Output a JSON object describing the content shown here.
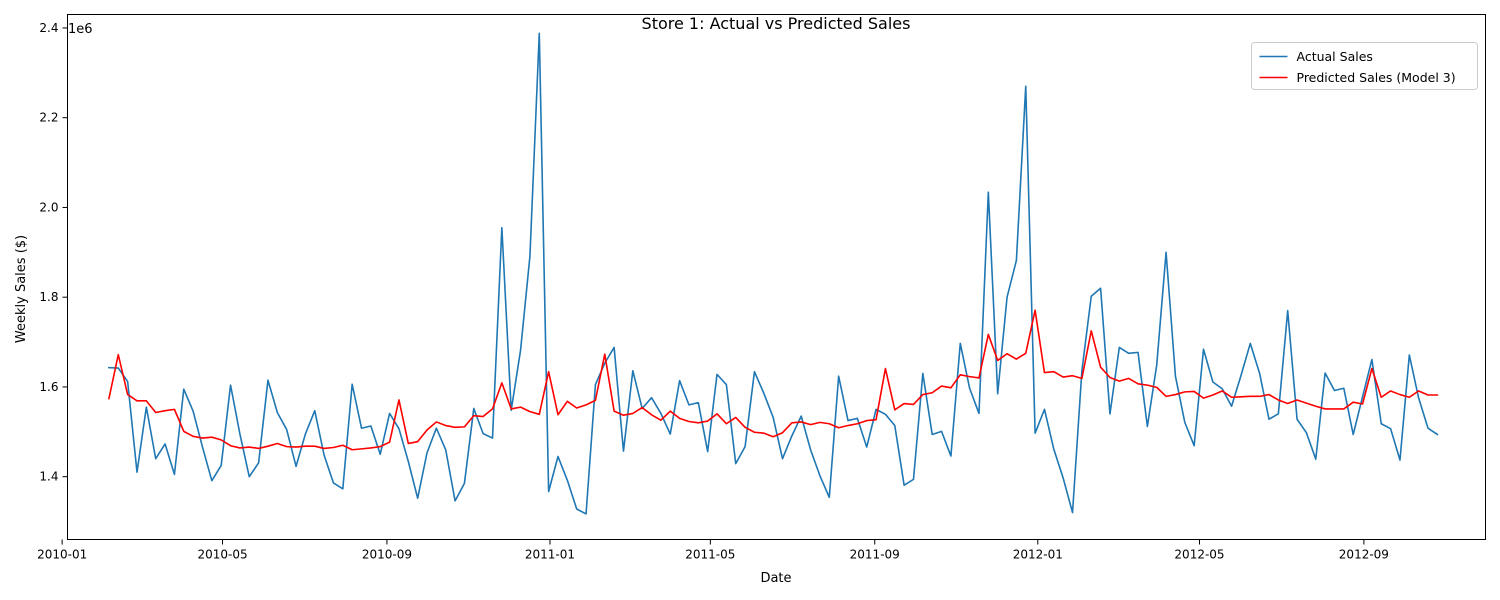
{
  "chart_data": {
    "type": "line",
    "title": "Store 1: Actual vs Predicted Sales",
    "xlabel": "Date",
    "ylabel": "Weekly Sales ($)",
    "y_offset_label": "1e6",
    "xlim": [
      "2010-01-05",
      "2012-12-01"
    ],
    "ylim": [
      1.26,
      2.43
    ],
    "x_ticks": [
      "2010-01",
      "2010-05",
      "2010-09",
      "2011-01",
      "2011-05",
      "2011-09",
      "2012-01",
      "2012-05",
      "2012-09"
    ],
    "y_ticks": [
      "1.4",
      "1.6",
      "1.8",
      "2.0",
      "2.2",
      "2.4"
    ],
    "legend_position": "top-right",
    "x_start": "2010-02-05",
    "x_step_days": 7,
    "series": [
      {
        "name": "Actual Sales",
        "color": "#1f77b4",
        "values": [
          1.643,
          1.642,
          1.612,
          1.41,
          1.555,
          1.44,
          1.473,
          1.405,
          1.595,
          1.546,
          1.466,
          1.391,
          1.425,
          1.604,
          1.495,
          1.4,
          1.431,
          1.615,
          1.543,
          1.505,
          1.423,
          1.495,
          1.547,
          1.448,
          1.386,
          1.373,
          1.606,
          1.508,
          1.513,
          1.45,
          1.541,
          1.507,
          1.434,
          1.352,
          1.453,
          1.508,
          1.46,
          1.346,
          1.385,
          1.552,
          1.496,
          1.486,
          1.955,
          1.548,
          1.682,
          1.891,
          2.388,
          1.367,
          1.445,
          1.392,
          1.328,
          1.317,
          1.605,
          1.653,
          1.688,
          1.457,
          1.636,
          1.552,
          1.576,
          1.541,
          1.495,
          1.614,
          1.56,
          1.565,
          1.456,
          1.628,
          1.605,
          1.429,
          1.467,
          1.634,
          1.586,
          1.532,
          1.44,
          1.491,
          1.535,
          1.46,
          1.402,
          1.354,
          1.624,
          1.525,
          1.53,
          1.466,
          1.55,
          1.539,
          1.514,
          1.381,
          1.394,
          1.63,
          1.494,
          1.501,
          1.446,
          1.697,
          1.597,
          1.541,
          2.034,
          1.585,
          1.8,
          1.882,
          2.27,
          1.497,
          1.55,
          1.461,
          1.397,
          1.32,
          1.636,
          1.802,
          1.82,
          1.54,
          1.688,
          1.675,
          1.677,
          1.512,
          1.649,
          1.9,
          1.624,
          1.521,
          1.469,
          1.684,
          1.611,
          1.596,
          1.557,
          1.625,
          1.697,
          1.63,
          1.528,
          1.54,
          1.77,
          1.528,
          1.498,
          1.439,
          1.631,
          1.592,
          1.597,
          1.494,
          1.578,
          1.661,
          1.518,
          1.507,
          1.437,
          1.671,
          1.575,
          1.508,
          1.494
        ]
      },
      {
        "name": "Predicted Sales (Model 3)",
        "color": "#ff0000",
        "values": [
          1.574,
          1.672,
          1.583,
          1.569,
          1.569,
          1.543,
          1.547,
          1.55,
          1.501,
          1.49,
          1.486,
          1.488,
          1.482,
          1.469,
          1.464,
          1.466,
          1.463,
          1.468,
          1.474,
          1.467,
          1.466,
          1.468,
          1.468,
          1.463,
          1.465,
          1.47,
          1.46,
          1.462,
          1.464,
          1.467,
          1.477,
          1.571,
          1.474,
          1.478,
          1.504,
          1.522,
          1.514,
          1.51,
          1.511,
          1.536,
          1.534,
          1.551,
          1.609,
          1.551,
          1.555,
          1.545,
          1.539,
          1.634,
          1.538,
          1.568,
          1.553,
          1.56,
          1.57,
          1.673,
          1.546,
          1.537,
          1.541,
          1.554,
          1.538,
          1.526,
          1.546,
          1.53,
          1.523,
          1.52,
          1.524,
          1.54,
          1.518,
          1.532,
          1.51,
          1.499,
          1.497,
          1.489,
          1.498,
          1.52,
          1.522,
          1.516,
          1.521,
          1.518,
          1.509,
          1.514,
          1.518,
          1.525,
          1.527,
          1.641,
          1.549,
          1.563,
          1.561,
          1.583,
          1.587,
          1.602,
          1.598,
          1.627,
          1.623,
          1.62,
          1.717,
          1.659,
          1.674,
          1.662,
          1.675,
          1.771,
          1.632,
          1.634,
          1.622,
          1.625,
          1.619,
          1.725,
          1.644,
          1.621,
          1.613,
          1.619,
          1.607,
          1.604,
          1.599,
          1.579,
          1.583,
          1.589,
          1.59,
          1.575,
          1.582,
          1.591,
          1.577,
          1.578,
          1.579,
          1.579,
          1.583,
          1.571,
          1.563,
          1.571,
          1.564,
          1.557,
          1.551,
          1.551,
          1.551,
          1.566,
          1.562,
          1.641,
          1.577,
          1.591,
          1.583,
          1.577,
          1.591,
          1.582,
          1.582
        ]
      }
    ]
  }
}
